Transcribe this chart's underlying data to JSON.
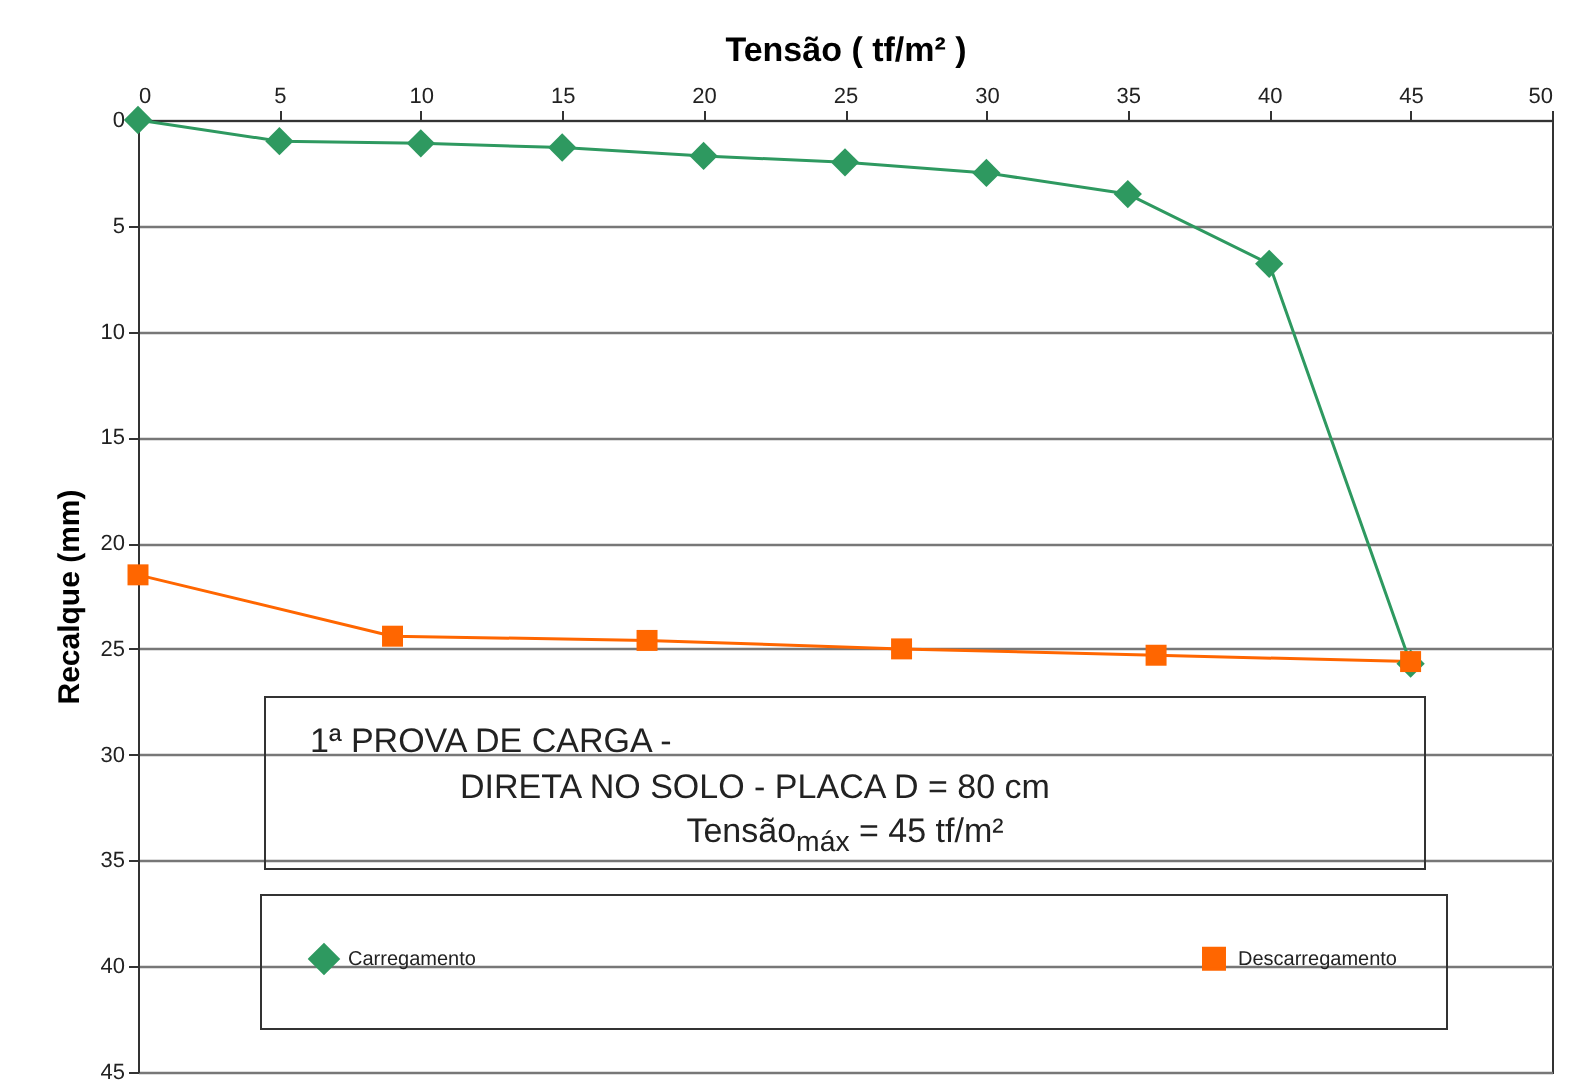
{
  "chart_data": {
    "type": "line",
    "xlabel": "Tensão ( tf/m² )",
    "ylabel": "Recalque (mm)",
    "xlim": [
      0,
      50
    ],
    "xticks": [
      0,
      5,
      10,
      15,
      20,
      25,
      30,
      35,
      40,
      45,
      50
    ],
    "ylim": [
      45,
      0
    ],
    "yticks": [
      0,
      5,
      10,
      15,
      20,
      25,
      30,
      35,
      40,
      45
    ],
    "grid": "y",
    "legend": "bottom",
    "line_style": "solid",
    "series": [
      {
        "name": "Carregamento",
        "color": "#2e9960",
        "marker": "diamond",
        "x": [
          0,
          5,
          10,
          15,
          20,
          25,
          30,
          35,
          40,
          45
        ],
        "values": [
          0,
          1.0,
          1.1,
          1.3,
          1.7,
          2.0,
          2.5,
          3.5,
          6.8,
          25.7
        ]
      },
      {
        "name": "Descarregamento",
        "color": "#ff6600",
        "marker": "square",
        "x": [
          0,
          9,
          18,
          27,
          36,
          45
        ],
        "values": [
          21.5,
          24.4,
          24.6,
          25.0,
          25.3,
          25.6
        ]
      }
    ],
    "annotations": [
      "1ª PROVA DE CARGA -",
      "DIRETA NO SOLO - PLACA D = 80 cm",
      "Tensão$_{máx}$ = 45 tf/m²"
    ]
  }
}
